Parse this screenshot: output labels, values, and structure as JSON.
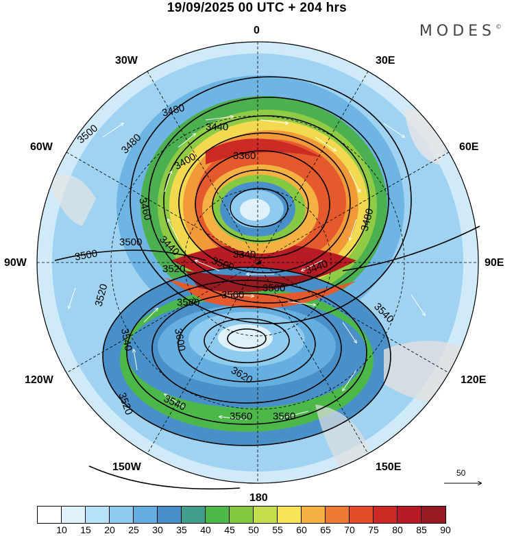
{
  "title": "19/09/2025  00 UTC  + 204 hrs",
  "brand": "MODES",
  "brand_mark": "©",
  "longitude_labels": {
    "n": "0",
    "e30": "30E",
    "e60": "60E",
    "e90": "90E",
    "e120": "120E",
    "e150": "150E",
    "s": "180",
    "w150": "150W",
    "w120": "120W",
    "w90": "90W",
    "w60": "60W",
    "w30": "30W"
  },
  "contour_labels": [
    {
      "text": "3440"
    },
    {
      "text": "3480"
    },
    {
      "text": "3500"
    },
    {
      "text": "3400"
    },
    {
      "text": "3360"
    },
    {
      "text": "3480"
    },
    {
      "text": "3460"
    },
    {
      "text": "3440"
    },
    {
      "text": "3500"
    },
    {
      "text": "3500"
    },
    {
      "text": "3520"
    },
    {
      "text": "3340"
    },
    {
      "text": "3440"
    },
    {
      "text": "3500"
    },
    {
      "text": "3560"
    },
    {
      "text": "3580"
    },
    {
      "text": "3520"
    },
    {
      "text": "3540"
    },
    {
      "text": "3600"
    },
    {
      "text": "3540"
    },
    {
      "text": "3620"
    },
    {
      "text": "3520"
    },
    {
      "text": "3540"
    },
    {
      "text": "3560"
    },
    {
      "text": "3560"
    },
    {
      "text": "3480"
    },
    {
      "text": "3500"
    }
  ],
  "reference_vector": "50",
  "colorbar": {
    "colors": [
      "#ffffff",
      "#dff2fb",
      "#b7e1f6",
      "#8ecbee",
      "#64aee0",
      "#4a90c8",
      "#3f9e8e",
      "#4cb84a",
      "#85c943",
      "#c5de4d",
      "#f7e356",
      "#f5b142",
      "#ef7a33",
      "#e34b2a",
      "#cc2a25",
      "#b71c24",
      "#961b22"
    ],
    "ticks": [
      "10",
      "15",
      "20",
      "25",
      "30",
      "35",
      "40",
      "45",
      "50",
      "55",
      "60",
      "65",
      "70",
      "75",
      "80",
      "85",
      "90"
    ]
  }
}
